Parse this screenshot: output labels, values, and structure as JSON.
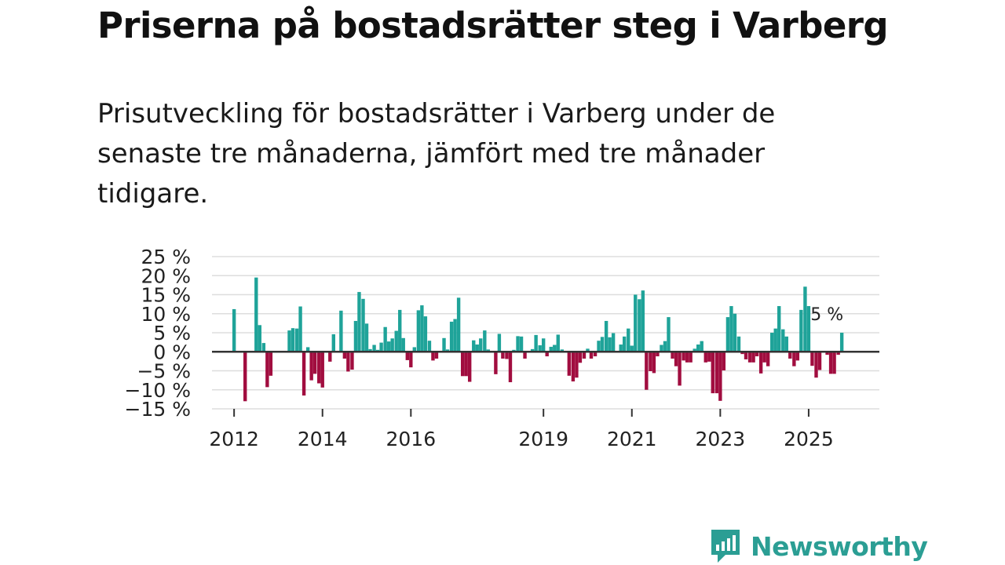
{
  "title": "Priserna på bostadsrätter steg i Varberg",
  "subtitle": "Prisutveckling för bostadsrätter i Varberg under de senaste tre månaderna, jämfört med tre månader tidigare.",
  "brand": {
    "name": "Newsworthy",
    "color": "#2b9e94"
  },
  "colors": {
    "positive": "#1fa399",
    "negative": "#a10d3f",
    "grid": "#dddddd",
    "zero": "#333333"
  },
  "chart_data": {
    "type": "bar",
    "title": "Priserna på bostadsrätter steg i Varberg",
    "xlabel": "",
    "ylabel": "",
    "ylim": [
      -15,
      25
    ],
    "y_ticks": [
      25,
      20,
      15,
      10,
      5,
      0,
      -5,
      -10,
      -15
    ],
    "y_tick_labels": [
      "25 %",
      "20 %",
      "15 %",
      "10 %",
      "5 %",
      "0 %",
      "−5 %",
      "−10 %",
      "−15 %"
    ],
    "x_range": [
      2011.5,
      2026.6
    ],
    "x_ticks": [
      2012,
      2014,
      2016,
      2019,
      2021,
      2023,
      2025
    ],
    "x_tick_labels": [
      "2012",
      "2014",
      "2016",
      "2019",
      "2021",
      "2023",
      "2025"
    ],
    "annotation": {
      "text": "5 %",
      "x": 2025.75,
      "y": 5
    },
    "series": [
      {
        "name": "Prisutveckling",
        "points": [
          {
            "x": 2012.0,
            "y": 11.2
          },
          {
            "x": 2012.25,
            "y": -13.0
          },
          {
            "x": 2012.5,
            "y": 19.5
          },
          {
            "x": 2012.58,
            "y": 7.0
          },
          {
            "x": 2012.67,
            "y": 2.3
          },
          {
            "x": 2012.75,
            "y": -9.3
          },
          {
            "x": 2012.83,
            "y": -6.3
          },
          {
            "x": 2013.25,
            "y": 5.6
          },
          {
            "x": 2013.33,
            "y": 6.2
          },
          {
            "x": 2013.42,
            "y": 6.1
          },
          {
            "x": 2013.5,
            "y": 11.9
          },
          {
            "x": 2013.58,
            "y": -11.5
          },
          {
            "x": 2013.67,
            "y": 1.2
          },
          {
            "x": 2013.75,
            "y": -7.5
          },
          {
            "x": 2013.83,
            "y": -5.8
          },
          {
            "x": 2013.92,
            "y": -8.3
          },
          {
            "x": 2014.0,
            "y": -9.4
          },
          {
            "x": 2014.17,
            "y": -2.6
          },
          {
            "x": 2014.25,
            "y": 4.6
          },
          {
            "x": 2014.42,
            "y": 10.8
          },
          {
            "x": 2014.5,
            "y": -1.8
          },
          {
            "x": 2014.58,
            "y": -5.2
          },
          {
            "x": 2014.67,
            "y": -4.7
          },
          {
            "x": 2014.75,
            "y": 8.1
          },
          {
            "x": 2014.83,
            "y": 15.7
          },
          {
            "x": 2014.92,
            "y": 13.9
          },
          {
            "x": 2015.0,
            "y": 7.4
          },
          {
            "x": 2015.08,
            "y": 0.7
          },
          {
            "x": 2015.17,
            "y": 1.8
          },
          {
            "x": 2015.25,
            "y": 0.5
          },
          {
            "x": 2015.33,
            "y": 2.4
          },
          {
            "x": 2015.42,
            "y": 6.5
          },
          {
            "x": 2015.5,
            "y": 2.7
          },
          {
            "x": 2015.58,
            "y": 3.5
          },
          {
            "x": 2015.67,
            "y": 5.5
          },
          {
            "x": 2015.75,
            "y": 11.0
          },
          {
            "x": 2015.83,
            "y": 3.6
          },
          {
            "x": 2015.92,
            "y": -2.2
          },
          {
            "x": 2016.0,
            "y": -4.1
          },
          {
            "x": 2016.08,
            "y": 1.2
          },
          {
            "x": 2016.17,
            "y": 10.9
          },
          {
            "x": 2016.25,
            "y": 12.2
          },
          {
            "x": 2016.33,
            "y": 9.3
          },
          {
            "x": 2016.42,
            "y": 2.9
          },
          {
            "x": 2016.5,
            "y": -2.3
          },
          {
            "x": 2016.58,
            "y": -1.8
          },
          {
            "x": 2016.75,
            "y": 3.6
          },
          {
            "x": 2016.83,
            "y": 0.6
          },
          {
            "x": 2016.92,
            "y": 7.9
          },
          {
            "x": 2017.0,
            "y": 8.6
          },
          {
            "x": 2017.08,
            "y": 14.2
          },
          {
            "x": 2017.17,
            "y": -6.4
          },
          {
            "x": 2017.25,
            "y": -6.4
          },
          {
            "x": 2017.33,
            "y": -7.9
          },
          {
            "x": 2017.42,
            "y": 3.0
          },
          {
            "x": 2017.5,
            "y": 1.9
          },
          {
            "x": 2017.58,
            "y": 3.5
          },
          {
            "x": 2017.67,
            "y": 5.6
          },
          {
            "x": 2017.75,
            "y": 0.6
          },
          {
            "x": 2017.92,
            "y": -5.9
          },
          {
            "x": 2018.0,
            "y": 4.7
          },
          {
            "x": 2018.08,
            "y": -1.8
          },
          {
            "x": 2018.17,
            "y": -1.9
          },
          {
            "x": 2018.25,
            "y": -8.0
          },
          {
            "x": 2018.33,
            "y": 0.5
          },
          {
            "x": 2018.42,
            "y": 4.1
          },
          {
            "x": 2018.5,
            "y": 4.0
          },
          {
            "x": 2018.58,
            "y": -1.8
          },
          {
            "x": 2018.75,
            "y": 0.7
          },
          {
            "x": 2018.83,
            "y": 4.4
          },
          {
            "x": 2018.92,
            "y": 1.7
          },
          {
            "x": 2019.0,
            "y": 3.5
          },
          {
            "x": 2019.08,
            "y": -1.2
          },
          {
            "x": 2019.17,
            "y": 1.3
          },
          {
            "x": 2019.25,
            "y": 1.8
          },
          {
            "x": 2019.33,
            "y": 4.5
          },
          {
            "x": 2019.42,
            "y": 0.6
          },
          {
            "x": 2019.58,
            "y": -6.3
          },
          {
            "x": 2019.67,
            "y": -7.8
          },
          {
            "x": 2019.75,
            "y": -6.8
          },
          {
            "x": 2019.83,
            "y": -2.9
          },
          {
            "x": 2019.92,
            "y": -1.8
          },
          {
            "x": 2020.0,
            "y": 0.8
          },
          {
            "x": 2020.08,
            "y": -1.8
          },
          {
            "x": 2020.17,
            "y": -1.2
          },
          {
            "x": 2020.25,
            "y": 2.9
          },
          {
            "x": 2020.33,
            "y": 3.9
          },
          {
            "x": 2020.42,
            "y": 8.1
          },
          {
            "x": 2020.5,
            "y": 3.8
          },
          {
            "x": 2020.58,
            "y": 4.9
          },
          {
            "x": 2020.75,
            "y": 1.9
          },
          {
            "x": 2020.83,
            "y": 4.0
          },
          {
            "x": 2020.92,
            "y": 6.1
          },
          {
            "x": 2021.0,
            "y": 1.6
          },
          {
            "x": 2021.08,
            "y": 15.0
          },
          {
            "x": 2021.17,
            "y": 13.8
          },
          {
            "x": 2021.25,
            "y": 16.1
          },
          {
            "x": 2021.33,
            "y": -10.0
          },
          {
            "x": 2021.42,
            "y": -5.1
          },
          {
            "x": 2021.5,
            "y": -5.6
          },
          {
            "x": 2021.58,
            "y": -1.2
          },
          {
            "x": 2021.67,
            "y": 1.8
          },
          {
            "x": 2021.75,
            "y": 2.8
          },
          {
            "x": 2021.83,
            "y": 9.1
          },
          {
            "x": 2021.92,
            "y": -1.8
          },
          {
            "x": 2022.0,
            "y": -3.8
          },
          {
            "x": 2022.08,
            "y": -8.9
          },
          {
            "x": 2022.17,
            "y": -2.3
          },
          {
            "x": 2022.25,
            "y": -2.8
          },
          {
            "x": 2022.33,
            "y": -2.8
          },
          {
            "x": 2022.42,
            "y": 0.8
          },
          {
            "x": 2022.5,
            "y": 1.9
          },
          {
            "x": 2022.58,
            "y": 2.8
          },
          {
            "x": 2022.67,
            "y": -2.8
          },
          {
            "x": 2022.75,
            "y": -2.6
          },
          {
            "x": 2022.83,
            "y": -10.9
          },
          {
            "x": 2022.92,
            "y": -10.9
          },
          {
            "x": 2023.0,
            "y": -12.9
          },
          {
            "x": 2023.08,
            "y": -4.9
          },
          {
            "x": 2023.17,
            "y": 9.1
          },
          {
            "x": 2023.25,
            "y": 12.0
          },
          {
            "x": 2023.33,
            "y": 10.0
          },
          {
            "x": 2023.42,
            "y": 4.0
          },
          {
            "x": 2023.5,
            "y": -0.6
          },
          {
            "x": 2023.58,
            "y": -2.0
          },
          {
            "x": 2023.67,
            "y": -2.8
          },
          {
            "x": 2023.75,
            "y": -2.8
          },
          {
            "x": 2023.83,
            "y": -1.2
          },
          {
            "x": 2023.92,
            "y": -5.7
          },
          {
            "x": 2024.0,
            "y": -2.8
          },
          {
            "x": 2024.08,
            "y": -3.8
          },
          {
            "x": 2024.17,
            "y": 5.0
          },
          {
            "x": 2024.25,
            "y": 6.1
          },
          {
            "x": 2024.33,
            "y": 12.0
          },
          {
            "x": 2024.42,
            "y": 5.9
          },
          {
            "x": 2024.5,
            "y": 4.0
          },
          {
            "x": 2024.58,
            "y": -1.8
          },
          {
            "x": 2024.67,
            "y": -3.8
          },
          {
            "x": 2024.75,
            "y": -2.3
          },
          {
            "x": 2024.83,
            "y": 11.0
          },
          {
            "x": 2024.92,
            "y": 17.1
          },
          {
            "x": 2025.0,
            "y": 12.0
          },
          {
            "x": 2025.08,
            "y": -3.7
          },
          {
            "x": 2025.17,
            "y": -6.8
          },
          {
            "x": 2025.25,
            "y": -4.8
          },
          {
            "x": 2025.42,
            "y": -0.8
          },
          {
            "x": 2025.5,
            "y": -5.8
          },
          {
            "x": 2025.58,
            "y": -5.8
          },
          {
            "x": 2025.67,
            "y": -0.8
          },
          {
            "x": 2025.75,
            "y": 5.0
          }
        ]
      }
    ]
  }
}
